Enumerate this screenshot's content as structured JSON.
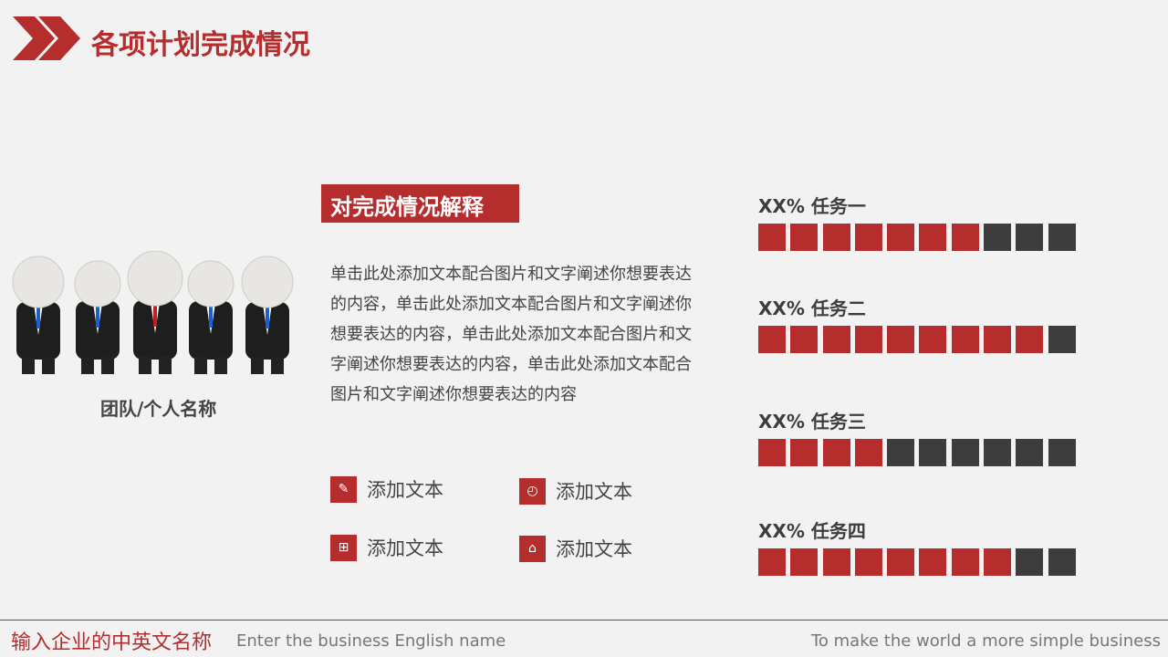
{
  "header": {
    "title": "各项计划完成情况",
    "accent": "#b52d2d"
  },
  "team": {
    "name": "团队/个人名称"
  },
  "explain": {
    "heading": "对完成情况解释",
    "body": "单击此处添加文本配合图片和文字阐述你想要表达的内容，单击此处添加文本配合图片和文字阐述你想要表达的内容，单击此处添加文本配合图片和文字阐述你想要表达的内容，单击此处添加文本配合图片和文字阐述你想要表达的内容"
  },
  "features": [
    {
      "icon": "edit-icon",
      "label": "添加文本"
    },
    {
      "icon": "clock-icon",
      "label": "添加文本"
    },
    {
      "icon": "grid-icon",
      "label": "添加文本"
    },
    {
      "icon": "home-icon",
      "label": "添加文本"
    }
  ],
  "tasks": [
    {
      "label": "XX% 任务一",
      "filled": 7,
      "total": 10
    },
    {
      "label": "XX% 任务二",
      "filled": 9,
      "total": 10
    },
    {
      "label": "XX% 任务三",
      "filled": 4,
      "total": 10
    },
    {
      "label": "XX% 任务四",
      "filled": 8,
      "total": 10
    }
  ],
  "colors": {
    "filled": "#b52d2d",
    "empty": "#3d3d3d"
  },
  "footer": {
    "company_cn": "输入企业的中英文名称",
    "company_en": "Enter the business English name",
    "slogan": "To make the world a more simple business"
  }
}
